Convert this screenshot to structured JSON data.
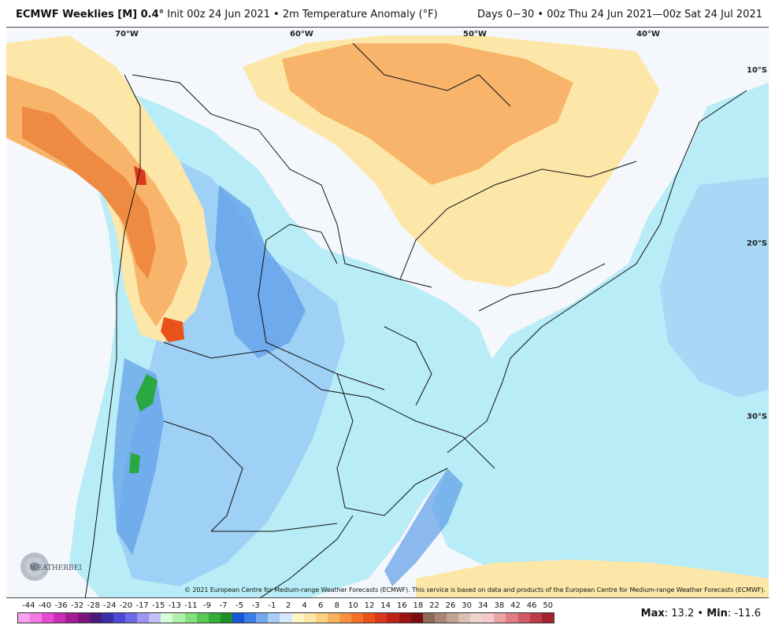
{
  "header": {
    "model": "ECMWF Weeklies [M] 0.4°",
    "init": "Init 00z 24 Jun 2021",
    "bullet": "•",
    "field": "2m Temperature Anomaly (°F)",
    "period": "Days 0−30 • 00z Thu 24 Jun 2021—00z Sat 24 Jul 2021"
  },
  "map": {
    "lon_labels": [
      "70°W",
      "60°W",
      "50°W",
      "40°W"
    ],
    "lat_labels": [
      "10°S",
      "20°S",
      "30°S"
    ],
    "copyright": "© 2021 European Centre for Medium-range Weather Forecasts (ECMWF). This service is based on data and products of the European Centre for Medium-range Weather Forecasts (ECMWF).",
    "logo_text": "WEATHERBELL",
    "colors": {
      "background": "#f4f7fc",
      "light_cyan": "#b8ecf6",
      "light_blue": "#9fd0f5",
      "mid_blue": "#5e9ee8",
      "blue": "#3b7be0",
      "green": "#2aa841",
      "light_orange": "#fde7a8",
      "orange": "#f8b46b",
      "dark_orange": "#ef8a43",
      "red": "#d83a1e"
    }
  },
  "legend": {
    "labels": [
      "-44",
      "-40",
      "-36",
      "-32",
      "-28",
      "-24",
      "-20",
      "-17",
      "-15",
      "-13",
      "-11",
      "-9",
      "-7",
      "-5",
      "-3",
      "-1",
      "2",
      "4",
      "6",
      "8",
      "10",
      "12",
      "14",
      "16",
      "18",
      "22",
      "26",
      "30",
      "34",
      "38",
      "42",
      "46",
      "50"
    ],
    "colors": [
      "#f9a3ee",
      "#f27ae1",
      "#e64bd1",
      "#c92fb6",
      "#a31c96",
      "#7b1479",
      "#4a1a7a",
      "#3a2fa8",
      "#4e4ad6",
      "#6d6be8",
      "#9b97f0",
      "#c2c0f5",
      "#d9ffd8",
      "#b2f1ad",
      "#86e07f",
      "#5ac855",
      "#34ad36",
      "#1d8f27",
      "#1a55d8",
      "#3a7fe6",
      "#72a8ee",
      "#a8cdf5",
      "#d4e9fb",
      "#fff4c4",
      "#fde7a8",
      "#fcd17f",
      "#f9b25d",
      "#f7933f",
      "#f27326",
      "#e9531a",
      "#d8371a",
      "#bd2216",
      "#9c1213",
      "#7a0d0f",
      "#8b6a5a",
      "#a88575",
      "#c4a294",
      "#dcc0b4",
      "#ecd5cc",
      "#f3c9c9",
      "#eaa3a6",
      "#de7d83",
      "#cf5a63",
      "#bb3b47",
      "#a3242f"
    ],
    "max_label": "Max",
    "max_value": "13.2",
    "min_label": "Min",
    "min_value": "-11.6"
  }
}
